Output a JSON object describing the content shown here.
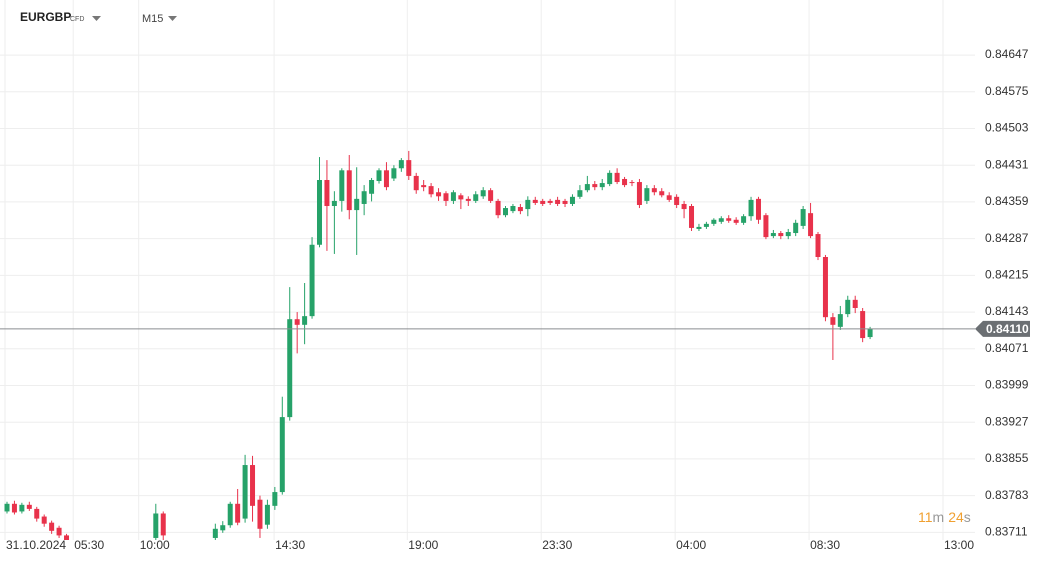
{
  "chart_data": {
    "type": "candlestick",
    "symbol": "EURGBP",
    "symbol_tag": "CFD",
    "timeframe": "M15",
    "up_color": "#26a269",
    "down_color": "#e8324b",
    "grid": true,
    "current_price": {
      "value": 0.8411,
      "label": "0.84110"
    },
    "countdown": {
      "minutes": "11",
      "minutes_unit": "m",
      "seconds": "24",
      "seconds_unit": "s"
    },
    "xlim": [
      -0.94,
      130.1
    ],
    "xticks": [
      {
        "value": -0.27,
        "label": "31.10.2024"
      },
      {
        "value": 8.9,
        "label": "05:30"
      },
      {
        "value": 17.7,
        "label": "10:00"
      },
      {
        "value": 35.9,
        "label": "14:30"
      },
      {
        "value": 53.8,
        "label": "19:00"
      },
      {
        "value": 71.8,
        "label": "23:30"
      },
      {
        "value": 89.8,
        "label": "04:00"
      },
      {
        "value": 107.8,
        "label": "08:30"
      },
      {
        "value": 125.8,
        "label": "13:00"
      }
    ],
    "ylim": [
      0.83696,
      0.84755
    ],
    "yticks": [
      0.84647,
      0.84575,
      0.84503,
      0.84431,
      0.84359,
      0.84287,
      0.84215,
      0.84143,
      0.84071,
      0.83999,
      0.83927,
      0.83855,
      0.83783,
      0.83711
    ],
    "x": [
      0,
      1,
      2,
      3,
      4,
      5,
      6,
      7,
      8,
      20,
      21,
      28,
      29,
      30,
      31,
      32,
      33,
      34,
      35,
      36,
      37,
      38,
      39,
      40,
      41,
      42,
      43,
      44,
      45,
      46,
      47,
      48,
      49,
      50,
      51,
      52,
      53,
      54,
      55,
      56,
      57,
      58,
      59,
      60,
      61,
      62,
      63,
      64,
      65,
      66,
      67,
      68,
      69,
      70,
      71,
      72,
      73,
      74,
      75,
      76,
      77,
      78,
      79,
      80,
      81,
      82,
      83,
      84,
      85,
      86,
      87,
      88,
      89,
      90,
      91,
      92,
      93,
      94,
      95,
      96,
      97,
      98,
      99,
      100,
      101,
      102,
      103,
      104,
      105,
      106,
      107,
      108,
      109,
      110,
      111,
      112,
      113,
      114,
      115,
      116
    ],
    "open": [
      0.83752,
      0.83767,
      0.83752,
      0.83765,
      0.83757,
      0.83742,
      0.8373,
      0.8372,
      0.83705,
      0.837,
      0.83748,
      0.837,
      0.83715,
      0.83725,
      0.83767,
      0.83738,
      0.83843,
      0.83775,
      0.83726,
      0.83763,
      0.8379,
      0.83937,
      0.84129,
      0.84118,
      0.84135,
      0.84275,
      0.84402,
      0.84351,
      0.84361,
      0.84421,
      0.84343,
      0.84355,
      0.84375,
      0.844,
      0.84421,
      0.84405,
      0.84425,
      0.84441,
      0.8441,
      0.84392,
      0.8439,
      0.84378,
      0.84376,
      0.84361,
      0.84372,
      0.84365,
      0.84361,
      0.8437,
      0.84382,
      0.84361,
      0.84333,
      0.84341,
      0.84349,
      0.84345,
      0.84363,
      0.84361,
      0.84361,
      0.84363,
      0.84361,
      0.84355,
      0.84369,
      0.84382,
      0.84394,
      0.84388,
      0.84394,
      0.84416,
      0.84404,
      0.84398,
      0.84398,
      0.84361,
      0.84386,
      0.8438,
      0.84372,
      0.84369,
      0.84355,
      0.84351,
      0.84306,
      0.8431,
      0.84316,
      0.8432,
      0.84327,
      0.84324,
      0.84318,
      0.84331,
      0.84365,
      0.84333,
      0.84292,
      0.84298,
      0.84292,
      0.84298,
      0.84312,
      0.84337,
      0.84296,
      0.84251,
      0.84133,
      0.84114,
      0.84139,
      0.84167,
      0.84145,
      0.84094
    ],
    "high": [
      0.83771,
      0.83773,
      0.83769,
      0.83771,
      0.83761,
      0.83746,
      0.83734,
      0.83724,
      0.83708,
      0.83767,
      0.83752,
      0.83728,
      0.83733,
      0.83771,
      0.83796,
      0.83863,
      0.83861,
      0.83783,
      0.83775,
      0.838,
      0.83977,
      0.84192,
      0.84143,
      0.842,
      0.8429,
      0.84447,
      0.84441,
      0.8438,
      0.84425,
      0.84451,
      0.84427,
      0.84392,
      0.84406,
      0.84425,
      0.84437,
      0.84431,
      0.84445,
      0.84459,
      0.84416,
      0.84402,
      0.84396,
      0.84386,
      0.8438,
      0.84382,
      0.84376,
      0.8437,
      0.8438,
      0.84388,
      0.84386,
      0.84365,
      0.84351,
      0.84355,
      0.84355,
      0.8437,
      0.84369,
      0.84365,
      0.84365,
      0.84369,
      0.84365,
      0.84374,
      0.84392,
      0.8441,
      0.844,
      0.84404,
      0.84421,
      0.84425,
      0.84408,
      0.84402,
      0.84404,
      0.84392,
      0.84392,
      0.84386,
      0.84378,
      0.84374,
      0.84361,
      0.84355,
      0.84316,
      0.8432,
      0.84327,
      0.84331,
      0.84333,
      0.84329,
      0.84335,
      0.84369,
      0.84369,
      0.84337,
      0.84304,
      0.84302,
      0.84306,
      0.84324,
      0.84351,
      0.84357,
      0.843,
      0.84255,
      0.84141,
      0.84155,
      0.84175,
      0.84175,
      0.84151,
      0.84114
    ],
    "low": [
      0.83748,
      0.83746,
      0.83748,
      0.83753,
      0.83732,
      0.83722,
      0.83708,
      0.837,
      0.83685,
      0.8369,
      0.8369,
      0.83695,
      0.8371,
      0.8372,
      0.83725,
      0.8373,
      0.83732,
      0.837,
      0.83718,
      0.83755,
      0.83785,
      0.8393,
      0.84062,
      0.8408,
      0.8413,
      0.8427,
      0.84263,
      0.84257,
      0.8434,
      0.84325,
      0.84255,
      0.84333,
      0.8436,
      0.84395,
      0.84382,
      0.844,
      0.84418,
      0.84402,
      0.84375,
      0.8438,
      0.84368,
      0.84361,
      0.84351,
      0.84355,
      0.84345,
      0.84351,
      0.84357,
      0.84365,
      0.84357,
      0.84327,
      0.84329,
      0.84337,
      0.84335,
      0.84331,
      0.84353,
      0.84351,
      0.84353,
      0.84351,
      0.84349,
      0.84351,
      0.84365,
      0.84378,
      0.84382,
      0.84382,
      0.8439,
      0.84394,
      0.84388,
      0.8439,
      0.84347,
      0.84355,
      0.84372,
      0.84368,
      0.84359,
      0.84347,
      0.84327,
      0.84302,
      0.84302,
      0.84306,
      0.84312,
      0.84316,
      0.84318,
      0.84314,
      0.84314,
      0.84322,
      0.84316,
      0.84286,
      0.84288,
      0.84286,
      0.84286,
      0.84292,
      0.84306,
      0.84288,
      0.84245,
      0.84125,
      0.84049,
      0.84108,
      0.84133,
      0.84141,
      0.84084,
      0.8409
    ],
    "close": [
      0.83767,
      0.8375,
      0.83765,
      0.83757,
      0.83738,
      0.83728,
      0.83714,
      0.83705,
      0.8369,
      0.83748,
      0.83705,
      0.83718,
      0.83725,
      0.83767,
      0.8373,
      0.83843,
      0.83763,
      0.83718,
      0.83765,
      0.8379,
      0.83937,
      0.84129,
      0.84118,
      0.84135,
      0.84275,
      0.84402,
      0.84351,
      0.84361,
      0.84421,
      0.84343,
      0.84365,
      0.8438,
      0.84402,
      0.84421,
      0.84388,
      0.84425,
      0.84441,
      0.8441,
      0.84382,
      0.84388,
      0.84374,
      0.8437,
      0.84361,
      0.84378,
      0.84364,
      0.84361,
      0.84374,
      0.84382,
      0.84361,
      0.84333,
      0.84347,
      0.84351,
      0.84341,
      0.84363,
      0.84357,
      0.84355,
      0.84357,
      0.84355,
      0.84355,
      0.84369,
      0.84382,
      0.84394,
      0.84388,
      0.84396,
      0.84416,
      0.84398,
      0.84392,
      0.84396,
      0.84353,
      0.84386,
      0.84378,
      0.84372,
      0.84363,
      0.84353,
      0.84345,
      0.84308,
      0.8431,
      0.84316,
      0.84324,
      0.84327,
      0.84322,
      0.84318,
      0.84331,
      0.84363,
      0.84324,
      0.8429,
      0.84298,
      0.84292,
      0.843,
      0.84318,
      0.84345,
      0.84292,
      0.84251,
      0.84133,
      0.84118,
      0.84139,
      0.84167,
      0.84151,
      0.84092,
      0.8411
    ]
  }
}
